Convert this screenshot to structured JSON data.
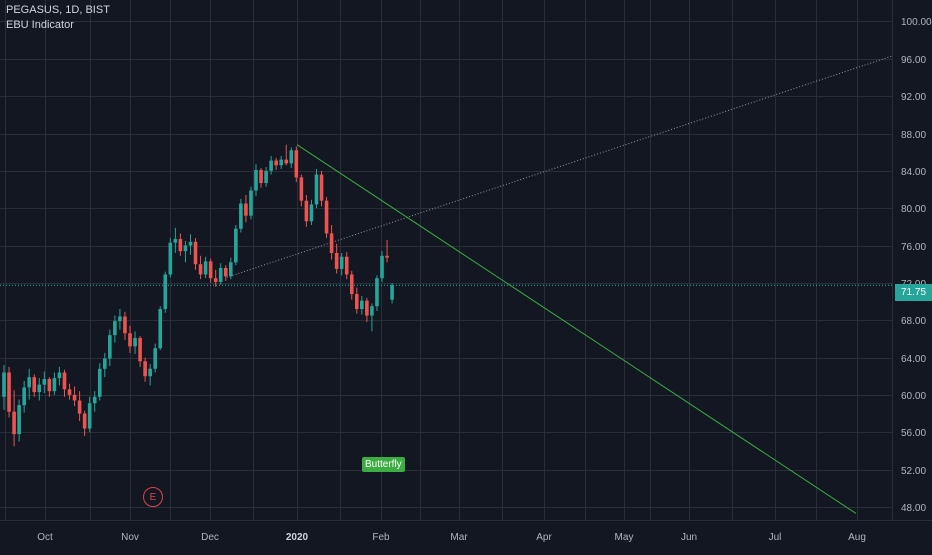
{
  "header": {
    "symbol_line": "PEGASUS, 1D, BIST",
    "indicator_name": "EBU Indicator"
  },
  "price_tag": "71.75",
  "pattern_label": "Butterfly",
  "earnings_marker": "E",
  "colors": {
    "background": "#131722",
    "grid": "#2a2e39",
    "up": "#26a69a",
    "down": "#ef5350",
    "trendline": "#3dac43",
    "dotted_line": "#9598a1",
    "price_line": "#2bbbad",
    "axis_text": "#b2b5be"
  },
  "chart_data": {
    "type": "candlestick",
    "title": "PEGASUS, 1D, BIST",
    "y_axis": {
      "ticks": [
        "100.00",
        "96.00",
        "92.00",
        "88.00",
        "84.00",
        "80.00",
        "76.00",
        "72.00",
        "68.00",
        "64.00",
        "60.00",
        "56.00",
        "52.00",
        "48.00"
      ],
      "ylim": [
        46.6,
        102.3
      ]
    },
    "x_axis": {
      "ticks": [
        "Oct",
        "Nov",
        "Dec",
        "2020",
        "Feb",
        "Mar",
        "Apr",
        "May",
        "Jun",
        "Jul",
        "Aug"
      ],
      "bold_ticks": [
        "2020"
      ]
    },
    "last_price": 71.75,
    "candles": [
      [
        59.8,
        63.2,
        58.4,
        62.4
      ],
      [
        62.4,
        63.0,
        57.6,
        58.2
      ],
      [
        58.2,
        60.5,
        54.5,
        55.8
      ],
      [
        55.8,
        59.5,
        55.0,
        58.9
      ],
      [
        58.9,
        61.5,
        58.1,
        60.8
      ],
      [
        60.8,
        62.8,
        59.5,
        61.9
      ],
      [
        61.9,
        62.2,
        59.8,
        60.3
      ],
      [
        60.3,
        61.8,
        59.4,
        61.1
      ],
      [
        61.1,
        62.5,
        60.2,
        61.7
      ],
      [
        61.7,
        61.9,
        59.8,
        60.4
      ],
      [
        60.4,
        62.4,
        60.0,
        61.8
      ],
      [
        61.8,
        63.0,
        61.0,
        62.4
      ],
      [
        62.4,
        62.7,
        59.8,
        60.6
      ],
      [
        60.6,
        61.2,
        59.5,
        60.0
      ],
      [
        60.0,
        60.9,
        58.8,
        59.4
      ],
      [
        59.4,
        60.4,
        57.2,
        58.0
      ],
      [
        58.0,
        58.3,
        55.6,
        56.4
      ],
      [
        56.4,
        59.8,
        56.0,
        59.1
      ],
      [
        59.1,
        60.4,
        58.2,
        59.8
      ],
      [
        59.8,
        63.4,
        59.4,
        62.8
      ],
      [
        62.8,
        64.5,
        61.9,
        63.9
      ],
      [
        63.9,
        67.0,
        63.1,
        66.4
      ],
      [
        66.4,
        68.5,
        65.6,
        67.9
      ],
      [
        67.9,
        69.2,
        67.0,
        68.4
      ],
      [
        68.4,
        68.9,
        65.9,
        66.6
      ],
      [
        66.6,
        67.4,
        64.5,
        65.2
      ],
      [
        65.2,
        66.8,
        64.4,
        66.1
      ],
      [
        66.1,
        66.3,
        63.0,
        63.6
      ],
      [
        63.6,
        64.0,
        61.4,
        62.0
      ],
      [
        62.0,
        63.3,
        61.0,
        62.8
      ],
      [
        62.8,
        65.5,
        62.4,
        65.0
      ],
      [
        65.0,
        69.5,
        64.8,
        69.2
      ],
      [
        69.2,
        73.2,
        68.8,
        72.9
      ],
      [
        72.9,
        76.8,
        72.6,
        76.3
      ],
      [
        76.3,
        77.9,
        75.2,
        76.7
      ],
      [
        76.7,
        77.3,
        74.9,
        75.4
      ],
      [
        75.4,
        76.5,
        74.2,
        76.0
      ],
      [
        76.0,
        77.2,
        75.0,
        76.4
      ],
      [
        76.4,
        76.8,
        73.4,
        74.0
      ],
      [
        74.0,
        74.9,
        72.4,
        72.9
      ],
      [
        72.9,
        74.8,
        72.5,
        74.3
      ],
      [
        74.3,
        74.6,
        72.0,
        72.5
      ],
      [
        72.5,
        73.4,
        71.6,
        72.1
      ],
      [
        72.1,
        74.1,
        71.8,
        73.6
      ],
      [
        73.6,
        73.9,
        72.2,
        72.7
      ],
      [
        72.7,
        74.7,
        72.4,
        74.2
      ],
      [
        74.2,
        78.2,
        73.9,
        77.8
      ],
      [
        77.8,
        81.0,
        77.4,
        80.5
      ],
      [
        80.5,
        81.4,
        78.5,
        79.2
      ],
      [
        79.2,
        82.3,
        78.8,
        81.9
      ],
      [
        81.9,
        84.7,
        81.3,
        84.1
      ],
      [
        84.1,
        84.3,
        82.2,
        82.7
      ],
      [
        82.7,
        84.4,
        82.3,
        84.0
      ],
      [
        84.0,
        85.6,
        83.6,
        85.1
      ],
      [
        85.1,
        85.4,
        84.1,
        84.6
      ],
      [
        84.6,
        85.6,
        84.2,
        85.2
      ],
      [
        85.2,
        86.8,
        84.6,
        84.8
      ],
      [
        84.8,
        86.5,
        84.3,
        86.2
      ],
      [
        86.2,
        86.6,
        82.8,
        83.3
      ],
      [
        83.3,
        83.6,
        80.2,
        80.8
      ],
      [
        80.8,
        81.4,
        78.0,
        78.6
      ],
      [
        78.6,
        80.9,
        78.2,
        80.4
      ],
      [
        80.4,
        84.2,
        80.0,
        83.6
      ],
      [
        83.6,
        84.0,
        80.2,
        80.8
      ],
      [
        80.8,
        81.2,
        76.8,
        77.3
      ],
      [
        77.3,
        78.2,
        74.5,
        75.2
      ],
      [
        75.2,
        76.2,
        73.0,
        73.5
      ],
      [
        73.5,
        75.2,
        72.8,
        74.8
      ],
      [
        74.8,
        75.3,
        72.4,
        72.9
      ],
      [
        72.9,
        73.3,
        70.2,
        70.8
      ],
      [
        70.8,
        71.5,
        68.7,
        69.2
      ],
      [
        69.2,
        70.6,
        68.6,
        70.1
      ],
      [
        70.1,
        70.4,
        67.8,
        68.5
      ],
      [
        68.5,
        69.8,
        66.8,
        69.5
      ],
      [
        69.5,
        72.8,
        69.0,
        72.5
      ],
      [
        72.5,
        75.4,
        72.1,
        74.9
      ],
      [
        74.9,
        76.6,
        74.2,
        74.7
      ],
      [
        70.2,
        72.0,
        69.8,
        71.75
      ]
    ]
  }
}
